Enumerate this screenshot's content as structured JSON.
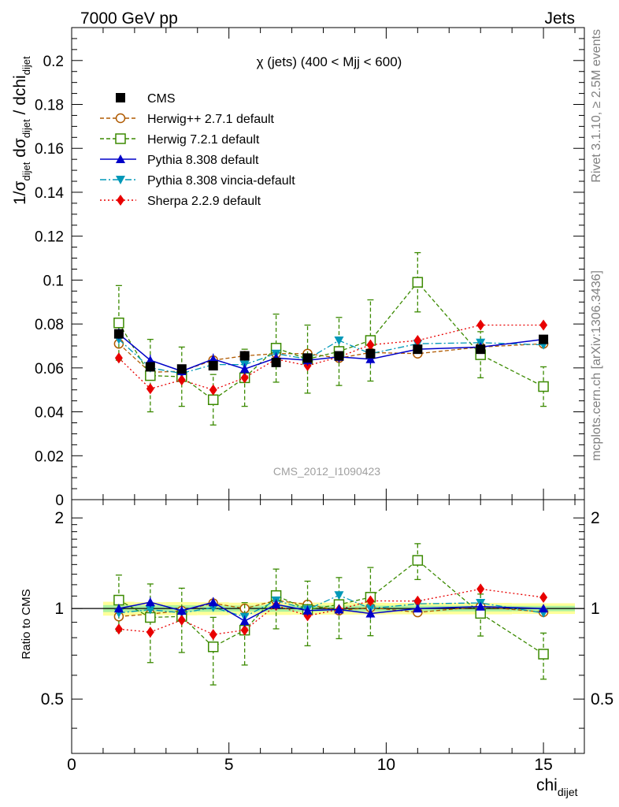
{
  "header": {
    "left": "7000 GeV pp",
    "right": "Jets"
  },
  "side_text": {
    "rivet": "Rivet 3.1.10, ≥ 2.5M events",
    "source": "mcplots.cern.ch [arXiv:1306.3436]"
  },
  "watermark": "CMS_2012_I1090423",
  "chart_data": {
    "type": "scatter",
    "title": "χ (jets) (400 < Mjj <  600)",
    "xlabel": "chi_dijet",
    "ylabel": "1/σ_dijet dσ_dijet / dchi_dijet",
    "ratio_ylabel": "Ratio to CMS",
    "xlim": [
      0,
      16.3
    ],
    "ylim": [
      0,
      0.215
    ],
    "ratio_ylim": [
      0.33,
      2.3
    ],
    "x_ticks": [
      "0",
      "5",
      "10",
      "15"
    ],
    "y_ticks": [
      "0",
      "0.02",
      "0.04",
      "0.06",
      "0.08",
      "0.1",
      "0.12",
      "0.14",
      "0.16",
      "0.18",
      "0.2"
    ],
    "ratio_ticks": [
      "0.5",
      "1",
      "2"
    ],
    "legend_position": "top-left",
    "grid": false,
    "x": [
      1.5,
      2.5,
      3.5,
      4.5,
      5.5,
      6.5,
      7.5,
      8.5,
      9.5,
      11.0,
      13.0,
      15.0
    ],
    "bin_edges": [
      1,
      2,
      3,
      4,
      5,
      6,
      7,
      8,
      9,
      10,
      12,
      14,
      16
    ],
    "series": [
      {
        "name": "CMS",
        "color": "#000000",
        "marker": "square-filled",
        "line": "none",
        "values": [
          0.0755,
          0.0605,
          0.0595,
          0.061,
          0.0655,
          0.0625,
          0.0645,
          0.0655,
          0.0665,
          0.0685,
          0.0685,
          0.073
        ],
        "errors": [
          0.002,
          0.0015,
          0.0015,
          0.0015,
          0.0015,
          0.0015,
          0.0015,
          0.0015,
          0.0015,
          0.0015,
          0.0015,
          0.0015
        ]
      },
      {
        "name": "Herwig++ 2.7.1 default",
        "color": "#b05a00",
        "marker": "circle-open",
        "line": "dashed",
        "values": [
          0.071,
          0.058,
          0.0585,
          0.0635,
          0.0655,
          0.0665,
          0.0665,
          0.0645,
          0.067,
          0.0665,
          0.0695,
          0.071
        ],
        "errors": [
          0.001,
          0.001,
          0.001,
          0.001,
          0.001,
          0.001,
          0.001,
          0.001,
          0.001,
          0.001,
          0.001,
          0.001
        ]
      },
      {
        "name": "Herwig 7.2.1 default",
        "color": "#3b8a00",
        "marker": "square-open",
        "line": "dashed",
        "values": [
          0.0805,
          0.0565,
          0.056,
          0.0455,
          0.0555,
          0.069,
          0.064,
          0.0675,
          0.0725,
          0.099,
          0.066,
          0.0515
        ],
        "errors": [
          0.017,
          0.0165,
          0.0135,
          0.0115,
          0.013,
          0.0155,
          0.0155,
          0.0155,
          0.0185,
          0.0135,
          0.0105,
          0.009
        ]
      },
      {
        "name": "Pythia 8.308 default",
        "color": "#0000c8",
        "marker": "triangle-up",
        "line": "solid",
        "values": [
          0.0755,
          0.0635,
          0.0585,
          0.064,
          0.0595,
          0.0645,
          0.0635,
          0.065,
          0.064,
          0.0685,
          0.0695,
          0.073
        ],
        "errors": [
          0.0025,
          0.0025,
          0.002,
          0.0025,
          0.0025,
          0.0025,
          0.0025,
          0.0025,
          0.0025,
          0.002,
          0.002,
          0.002
        ]
      },
      {
        "name": "Pythia 8.308 vincia-default",
        "color": "#0098b8",
        "marker": "triangle-down",
        "line": "dashdot",
        "values": [
          0.073,
          0.06,
          0.0575,
          0.0615,
          0.0615,
          0.0665,
          0.064,
          0.0725,
          0.0665,
          0.071,
          0.0715,
          0.0705
        ],
        "errors": [
          0.0015,
          0.0015,
          0.0015,
          0.0015,
          0.0015,
          0.0015,
          0.0015,
          0.0015,
          0.0015,
          0.0015,
          0.0015,
          0.0015
        ]
      },
      {
        "name": "Sherpa 2.2.9 default",
        "color": "#e80000",
        "marker": "diamond",
        "line": "dotted",
        "values": [
          0.0645,
          0.0505,
          0.0545,
          0.05,
          0.0555,
          0.064,
          0.061,
          0.065,
          0.0705,
          0.0725,
          0.0795,
          0.0795
        ],
        "errors": [
          0.002,
          0.002,
          0.002,
          0.002,
          0.002,
          0.002,
          0.002,
          0.002,
          0.002,
          0.0015,
          0.0015,
          0.0015
        ]
      }
    ]
  }
}
